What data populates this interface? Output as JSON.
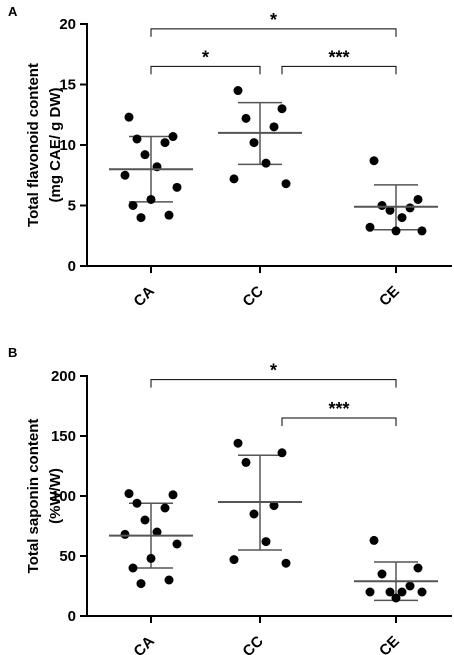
{
  "chart_data": [
    {
      "panel": "A",
      "type": "scatter",
      "ylabel": "Total flavonoid content\n(mg CAE/ g DW)",
      "categories": [
        "CA",
        "CC",
        "CE"
      ],
      "ylim": [
        0,
        20
      ],
      "yticks": [
        0,
        5,
        10,
        15,
        20
      ],
      "groups": [
        {
          "name": "CA",
          "mean": 8.0,
          "sd_low": 5.3,
          "sd_high": 10.7,
          "points": [
            12.3,
            10.7,
            10.5,
            10.2,
            9.2,
            8.2,
            7.5,
            6.5,
            5.5,
            5.0,
            4.2,
            4.0
          ]
        },
        {
          "name": "CC",
          "mean": 11.0,
          "sd_low": 8.4,
          "sd_high": 13.5,
          "points": [
            14.5,
            13.0,
            12.2,
            11.5,
            10.2,
            8.5,
            7.2,
            6.8
          ]
        },
        {
          "name": "CE",
          "mean": 4.9,
          "sd_low": 3.0,
          "sd_high": 6.7,
          "points": [
            8.7,
            5.5,
            5.0,
            4.8,
            4.6,
            4.0,
            3.2,
            2.9,
            2.9
          ]
        }
      ],
      "significance": [
        {
          "from": "CA",
          "to": "CE",
          "label": "*",
          "y": 19.6
        },
        {
          "from": "CA",
          "to": "CC",
          "label": "*",
          "y": 16.5
        },
        {
          "from": "CC",
          "to": "CE",
          "label": "***",
          "y": 16.5
        }
      ]
    },
    {
      "panel": "B",
      "type": "scatter",
      "ylabel": "Total saponin content\n(%W/W)",
      "categories": [
        "CA",
        "CC",
        "CE"
      ],
      "ylim": [
        0,
        200
      ],
      "yticks": [
        0,
        50,
        100,
        150,
        200
      ],
      "groups": [
        {
          "name": "CA",
          "mean": 67,
          "sd_low": 40,
          "sd_high": 94,
          "points": [
            102,
            101,
            94,
            90,
            80,
            70,
            68,
            60,
            48,
            40,
            30,
            27
          ]
        },
        {
          "name": "CC",
          "mean": 95,
          "sd_low": 55,
          "sd_high": 134,
          "points": [
            144,
            136,
            128,
            92,
            85,
            62,
            47,
            44
          ]
        },
        {
          "name": "CE",
          "mean": 29,
          "sd_low": 13,
          "sd_high": 45,
          "points": [
            63,
            40,
            35,
            25,
            20,
            20,
            20,
            20,
            15
          ]
        }
      ],
      "significance": [
        {
          "from": "CA",
          "to": "CE",
          "label": "*",
          "y": 197
        },
        {
          "from": "CC",
          "to": "CE",
          "label": "***",
          "y": 165
        }
      ]
    }
  ]
}
